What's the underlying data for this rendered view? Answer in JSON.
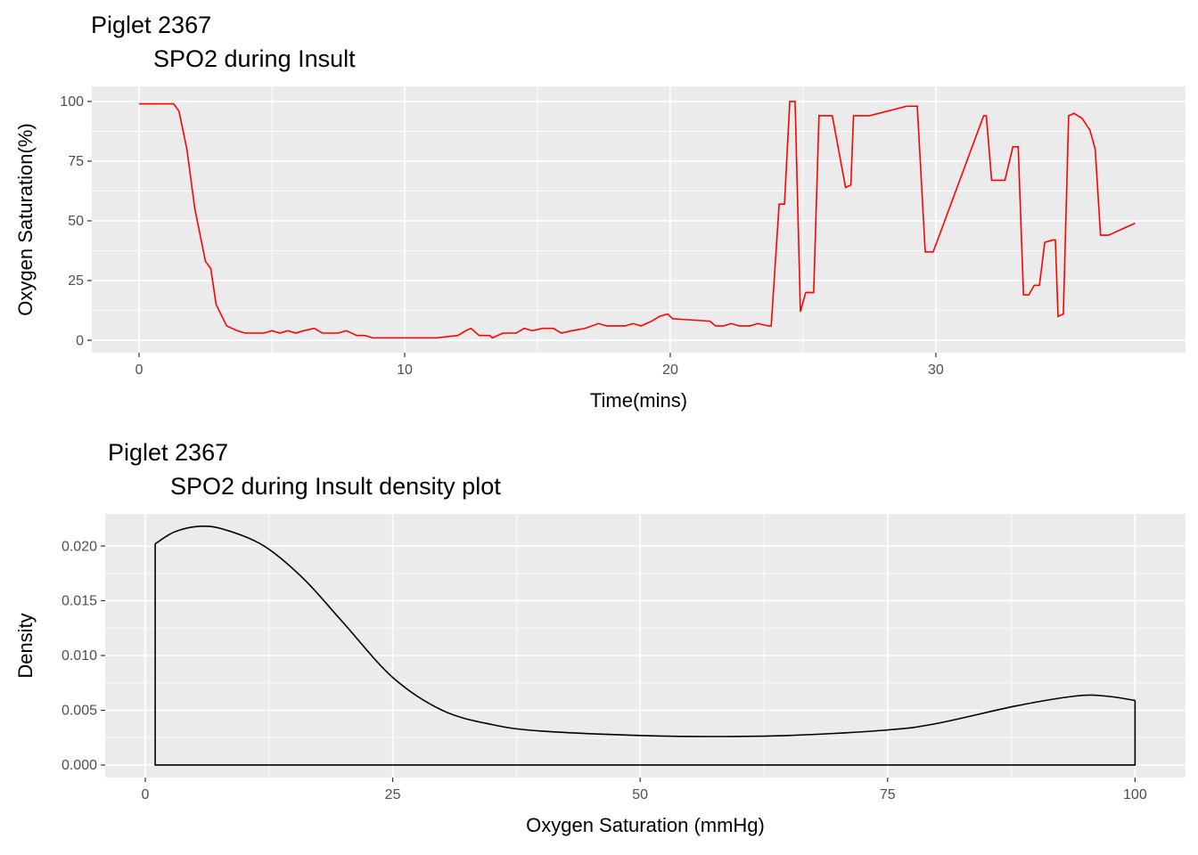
{
  "chart_data": [
    {
      "type": "line",
      "title": "Piglet 2367",
      "subtitle": "SPO2 during Insult",
      "x_label": "Time(mins)",
      "y_label": "Oxygen Saturation(%)",
      "xlim": [
        -1.78,
        39.4
      ],
      "ylim": [
        -5.2,
        106.3
      ],
      "xticks": [
        0,
        10,
        20,
        30
      ],
      "yticks": [
        0,
        25,
        50,
        75,
        100
      ],
      "grid": true,
      "minor_grid": true,
      "series": [
        {
          "color": "#ff0000",
          "x": [
            0,
            1.3,
            1.5,
            1.8,
            2.1,
            2.5,
            2.7,
            2.9,
            3.3,
            3.7,
            4,
            4.7,
            5,
            5.3,
            5.6,
            5.9,
            6.2,
            6.6,
            6.9,
            7.5,
            7.8,
            8.2,
            8.5,
            8.8,
            11.2,
            12,
            12.3,
            12.5,
            12.8,
            13.2,
            13.3,
            13.7,
            14.2,
            14.5,
            14.8,
            15.2,
            15.6,
            15.9,
            16.3,
            16.8,
            17.3,
            17.6,
            18.3,
            18.6,
            18.9,
            19.3,
            19.6,
            19.9,
            20.1,
            21.5,
            21.7,
            22,
            22.3,
            22.6,
            23,
            23.3,
            23.7,
            23.8,
            24.1,
            24.3,
            24.5,
            24.7,
            24.9,
            25.1,
            25.4,
            25.6,
            26.1,
            26.6,
            26.8,
            26.9,
            27.5,
            28.9,
            29.3,
            29.6,
            29.9,
            31.8,
            31.9,
            32.1,
            32.6,
            32.9,
            33.1,
            33.3,
            33.5,
            33.7,
            33.9,
            34.1,
            34.4,
            34.5,
            34.6,
            34.8,
            35,
            35.2,
            35.5,
            35.8,
            36,
            36.2,
            36.5,
            37.5
          ],
          "values": [
            99,
            99,
            96,
            80,
            55,
            33,
            30,
            15,
            6,
            4,
            3,
            3,
            4,
            3,
            4,
            3,
            4,
            5,
            3,
            3,
            4,
            2,
            2,
            1,
            1,
            2,
            4,
            5,
            2,
            2,
            1,
            3,
            3,
            5,
            4,
            5,
            5,
            3,
            4,
            5,
            7,
            6,
            6,
            7,
            6,
            8,
            10,
            11,
            9,
            8,
            6,
            6,
            7,
            6,
            6,
            7,
            6,
            6,
            57,
            57,
            100,
            100,
            12,
            20,
            20,
            94,
            94,
            64,
            65,
            94,
            94,
            98,
            98,
            37,
            37,
            94,
            94,
            67,
            67,
            81,
            81,
            19,
            19,
            23,
            23,
            41,
            42,
            42,
            10,
            11,
            94,
            95,
            93,
            88,
            80,
            44,
            44,
            49
          ]
        }
      ]
    },
    {
      "type": "density",
      "title": "Piglet 2367",
      "subtitle": "SPO2 during Insult density plot",
      "x_label": "Oxygen Saturation (mmHg)",
      "y_label": "Density",
      "xlim": [
        -4.05,
        105.1
      ],
      "ylim": [
        -0.00114,
        0.02293
      ],
      "xticks": [
        0,
        25,
        50,
        75,
        100
      ],
      "yticks": [
        {
          "value": 0,
          "label": "0.000"
        },
        {
          "value": 0.005,
          "label": "0.005"
        },
        {
          "value": 0.01,
          "label": "0.010"
        },
        {
          "value": 0.015,
          "label": "0.015"
        },
        {
          "value": 0.02,
          "label": "0.020"
        }
      ],
      "grid": true,
      "minor_grid": true,
      "series": [
        {
          "color": "#000000",
          "x": [
            1,
            3,
            5.5,
            8,
            12,
            16,
            20,
            25,
            30,
            35,
            40,
            50,
            57,
            65,
            75,
            80,
            88,
            94,
            97,
            100
          ],
          "values": [
            0.0202,
            0.0213,
            0.0218,
            0.0215,
            0.02,
            0.017,
            0.013,
            0.008,
            0.005,
            0.0037,
            0.0031,
            0.0027,
            0.0026,
            0.0027,
            0.0032,
            0.0038,
            0.0054,
            0.0063,
            0.0063,
            0.0059
          ]
        }
      ]
    }
  ]
}
